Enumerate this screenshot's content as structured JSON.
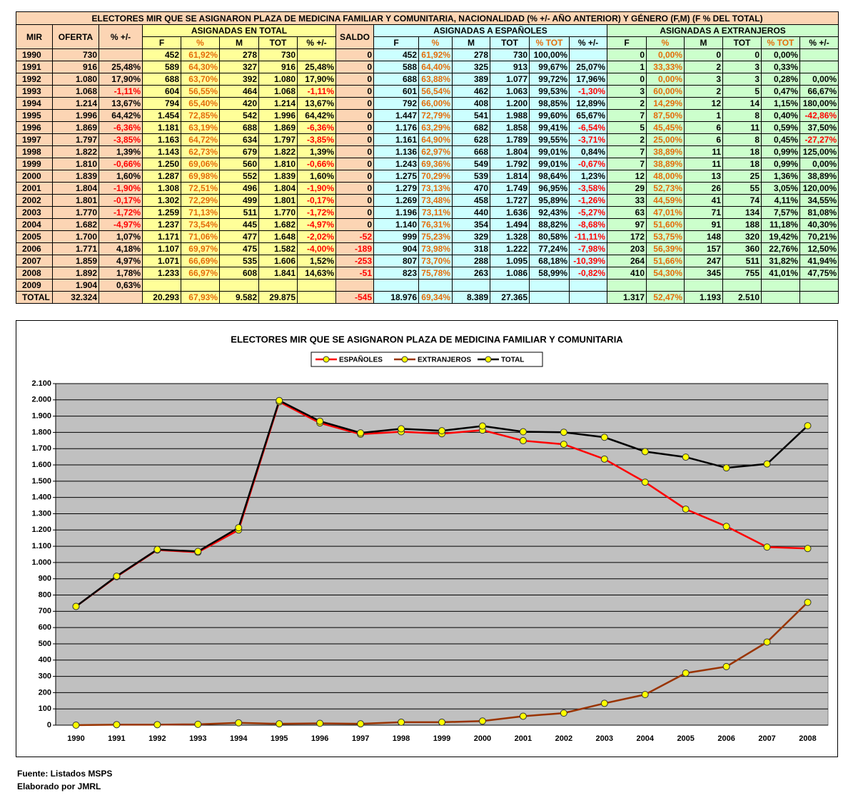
{
  "table": {
    "title": "ELECTORES MIR QUE SE ASIGNARON PLAZA DE MEDICINA FAMILIAR Y COMUNITARIA, NACIONALIDAD (% +/- AÑO ANTERIOR) Y GÉNERO (F,M) (F % DEL TOTAL)",
    "header_top": [
      "MIR",
      "OFERTA",
      "% +/-",
      "ASIGNADAS EN TOTAL",
      "SALDO",
      "ASIGNADAS A ESPAÑOLES",
      "ASIGNADAS A EXTRANJEROS"
    ],
    "header_sub": [
      "F",
      "%",
      "M",
      "TOT",
      "% +/-",
      "F",
      "%",
      "M",
      "TOT",
      "% TOT",
      "% +/-",
      "F",
      "%",
      "M",
      "TOT",
      "% TOT",
      "% +/-"
    ],
    "rows": [
      [
        "1990",
        "730",
        null,
        "452",
        "61,92%",
        "278",
        "730",
        null,
        "0",
        "452",
        "61,92%",
        "278",
        "730",
        "100,00%",
        null,
        "0",
        "0,00%",
        "0",
        "0",
        "0,00%",
        null
      ],
      [
        "1991",
        "916",
        "25,48%",
        "589",
        "64,30%",
        "327",
        "916",
        "25,48%",
        "0",
        "588",
        "64,40%",
        "325",
        "913",
        "99,67%",
        "25,07%",
        "1",
        "33,33%",
        "2",
        "3",
        "0,33%",
        null
      ],
      [
        "1992",
        "1.080",
        "17,90%",
        "688",
        "63,70%",
        "392",
        "1.080",
        "17,90%",
        "0",
        "688",
        "63,88%",
        "389",
        "1.077",
        "99,72%",
        "17,96%",
        "0",
        "0,00%",
        "3",
        "3",
        "0,28%",
        "0,00%"
      ],
      [
        "1993",
        "1.068",
        "-1,11%",
        "604",
        "56,55%",
        "464",
        "1.068",
        "-1,11%",
        "0",
        "601",
        "56,54%",
        "462",
        "1.063",
        "99,53%",
        "-1,30%",
        "3",
        "60,00%",
        "2",
        "5",
        "0,47%",
        "66,67%"
      ],
      [
        "1994",
        "1.214",
        "13,67%",
        "794",
        "65,40%",
        "420",
        "1.214",
        "13,67%",
        "0",
        "792",
        "66,00%",
        "408",
        "1.200",
        "98,85%",
        "12,89%",
        "2",
        "14,29%",
        "12",
        "14",
        "1,15%",
        "180,00%"
      ],
      [
        "1995",
        "1.996",
        "64,42%",
        "1.454",
        "72,85%",
        "542",
        "1.996",
        "64,42%",
        "0",
        "1.447",
        "72,79%",
        "541",
        "1.988",
        "99,60%",
        "65,67%",
        "7",
        "87,50%",
        "1",
        "8",
        "0,40%",
        "-42,86%"
      ],
      [
        "1996",
        "1.869",
        "-6,36%",
        "1.181",
        "63,19%",
        "688",
        "1.869",
        "-6,36%",
        "0",
        "1.176",
        "63,29%",
        "682",
        "1.858",
        "99,41%",
        "-6,54%",
        "5",
        "45,45%",
        "6",
        "11",
        "0,59%",
        "37,50%"
      ],
      [
        "1997",
        "1.797",
        "-3,85%",
        "1.163",
        "64,72%",
        "634",
        "1.797",
        "-3,85%",
        "0",
        "1.161",
        "64,90%",
        "628",
        "1.789",
        "99,55%",
        "-3,71%",
        "2",
        "25,00%",
        "6",
        "8",
        "0,45%",
        "-27,27%"
      ],
      [
        "1998",
        "1.822",
        "1,39%",
        "1.143",
        "62,73%",
        "679",
        "1.822",
        "1,39%",
        "0",
        "1.136",
        "62,97%",
        "668",
        "1.804",
        "99,01%",
        "0,84%",
        "7",
        "38,89%",
        "11",
        "18",
        "0,99%",
        "125,00%"
      ],
      [
        "1999",
        "1.810",
        "-0,66%",
        "1.250",
        "69,06%",
        "560",
        "1.810",
        "-0,66%",
        "0",
        "1.243",
        "69,36%",
        "549",
        "1.792",
        "99,01%",
        "-0,67%",
        "7",
        "38,89%",
        "11",
        "18",
        "0,99%",
        "0,00%"
      ],
      [
        "2000",
        "1.839",
        "1,60%",
        "1.287",
        "69,98%",
        "552",
        "1.839",
        "1,60%",
        "0",
        "1.275",
        "70,29%",
        "539",
        "1.814",
        "98,64%",
        "1,23%",
        "12",
        "48,00%",
        "13",
        "25",
        "1,36%",
        "38,89%"
      ],
      [
        "2001",
        "1.804",
        "-1,90%",
        "1.308",
        "72,51%",
        "496",
        "1.804",
        "-1,90%",
        "0",
        "1.279",
        "73,13%",
        "470",
        "1.749",
        "96,95%",
        "-3,58%",
        "29",
        "52,73%",
        "26",
        "55",
        "3,05%",
        "120,00%"
      ],
      [
        "2002",
        "1.801",
        "-0,17%",
        "1.302",
        "72,29%",
        "499",
        "1.801",
        "-0,17%",
        "0",
        "1.269",
        "73,48%",
        "458",
        "1.727",
        "95,89%",
        "-1,26%",
        "33",
        "44,59%",
        "41",
        "74",
        "4,11%",
        "34,55%"
      ],
      [
        "2003",
        "1.770",
        "-1,72%",
        "1.259",
        "71,13%",
        "511",
        "1.770",
        "-1,72%",
        "0",
        "1.196",
        "73,11%",
        "440",
        "1.636",
        "92,43%",
        "-5,27%",
        "63",
        "47,01%",
        "71",
        "134",
        "7,57%",
        "81,08%"
      ],
      [
        "2004",
        "1.682",
        "-4,97%",
        "1.237",
        "73,54%",
        "445",
        "1.682",
        "-4,97%",
        "0",
        "1.140",
        "76,31%",
        "354",
        "1.494",
        "88,82%",
        "-8,68%",
        "97",
        "51,60%",
        "91",
        "188",
        "11,18%",
        "40,30%"
      ],
      [
        "2005",
        "1.700",
        "1,07%",
        "1.171",
        "71,06%",
        "477",
        "1.648",
        "-2,02%",
        "-52",
        "999",
        "75,23%",
        "329",
        "1.328",
        "80,58%",
        "-11,11%",
        "172",
        "53,75%",
        "148",
        "320",
        "19,42%",
        "70,21%"
      ],
      [
        "2006",
        "1.771",
        "4,18%",
        "1.107",
        "69,97%",
        "475",
        "1.582",
        "-4,00%",
        "-189",
        "904",
        "73,98%",
        "318",
        "1.222",
        "77,24%",
        "-7,98%",
        "203",
        "56,39%",
        "157",
        "360",
        "22,76%",
        "12,50%"
      ],
      [
        "2007",
        "1.859",
        "4,97%",
        "1.071",
        "66,69%",
        "535",
        "1.606",
        "1,52%",
        "-253",
        "807",
        "73,70%",
        "288",
        "1.095",
        "68,18%",
        "-10,39%",
        "264",
        "51,66%",
        "247",
        "511",
        "31,82%",
        "41,94%"
      ],
      [
        "2008",
        "1.892",
        "1,78%",
        "1.233",
        "66,97%",
        "608",
        "1.841",
        "14,63%",
        "-51",
        "823",
        "75,78%",
        "263",
        "1.086",
        "58,99%",
        "-0,82%",
        "410",
        "54,30%",
        "345",
        "755",
        "41,01%",
        "47,75%"
      ],
      [
        "2009",
        "1.904",
        "0,63%",
        null,
        null,
        null,
        null,
        null,
        null,
        null,
        null,
        null,
        null,
        null,
        null,
        null,
        null,
        null,
        null,
        null,
        null
      ],
      [
        "TOTAL",
        "32.324",
        null,
        "20.293",
        "67,93%",
        "9.582",
        "29.875",
        null,
        "-545",
        "18.976",
        "69,34%",
        "8.389",
        "27.365",
        null,
        null,
        "1.317",
        "52,47%",
        "1.193",
        "2.510",
        null,
        null
      ]
    ]
  },
  "chart_data": {
    "type": "line",
    "title": "ELECTORES MIR QUE SE ASIGNARON PLAZA DE MEDICINA FAMILIAR Y COMUNITARIA",
    "categories": [
      "1990",
      "1991",
      "1992",
      "1993",
      "1994",
      "1995",
      "1996",
      "1997",
      "1998",
      "1999",
      "2000",
      "2001",
      "2002",
      "2003",
      "2004",
      "2005",
      "2006",
      "2007",
      "2008"
    ],
    "series": [
      {
        "name": "ESPAÑOLES",
        "color": "#ff0000",
        "values": [
          730,
          913,
          1077,
          1063,
          1200,
          1988,
          1858,
          1789,
          1804,
          1792,
          1814,
          1749,
          1727,
          1636,
          1494,
          1328,
          1222,
          1095,
          1086
        ]
      },
      {
        "name": "EXTRANJEROS",
        "color": "#993300",
        "values": [
          0,
          3,
          3,
          5,
          14,
          8,
          11,
          8,
          18,
          18,
          25,
          55,
          74,
          134,
          188,
          320,
          360,
          511,
          755
        ]
      },
      {
        "name": "TOTAL",
        "color": "#000000",
        "values": [
          730,
          916,
          1080,
          1068,
          1214,
          1996,
          1869,
          1797,
          1822,
          1810,
          1839,
          1804,
          1801,
          1770,
          1682,
          1648,
          1582,
          1606,
          1841
        ]
      }
    ],
    "marker_color": "#ffff00",
    "ylim": [
      0,
      2100
    ],
    "yticks": [
      0,
      100,
      200,
      300,
      400,
      500,
      600,
      700,
      800,
      900,
      {
        "value": 1000,
        "label": "1.000"
      },
      {
        "value": 1100,
        "label": "1.100"
      },
      {
        "value": 1200,
        "label": "1.200"
      },
      {
        "value": 1300,
        "label": "1.300"
      },
      {
        "value": 1400,
        "label": "1.400"
      },
      {
        "value": 1500,
        "label": "1.500"
      },
      {
        "value": 1600,
        "label": "1.600"
      },
      {
        "value": 1700,
        "label": "1.700"
      },
      {
        "value": 1800,
        "label": "1.800"
      },
      {
        "value": 1900,
        "label": "1.900"
      },
      {
        "value": 2000,
        "label": "2.000"
      },
      {
        "value": 2100,
        "label": "2.100"
      }
    ],
    "grid": true,
    "legend": "top"
  },
  "footer": [
    "Fuente: Listados MSPS",
    "Elaborado por JMRL"
  ]
}
